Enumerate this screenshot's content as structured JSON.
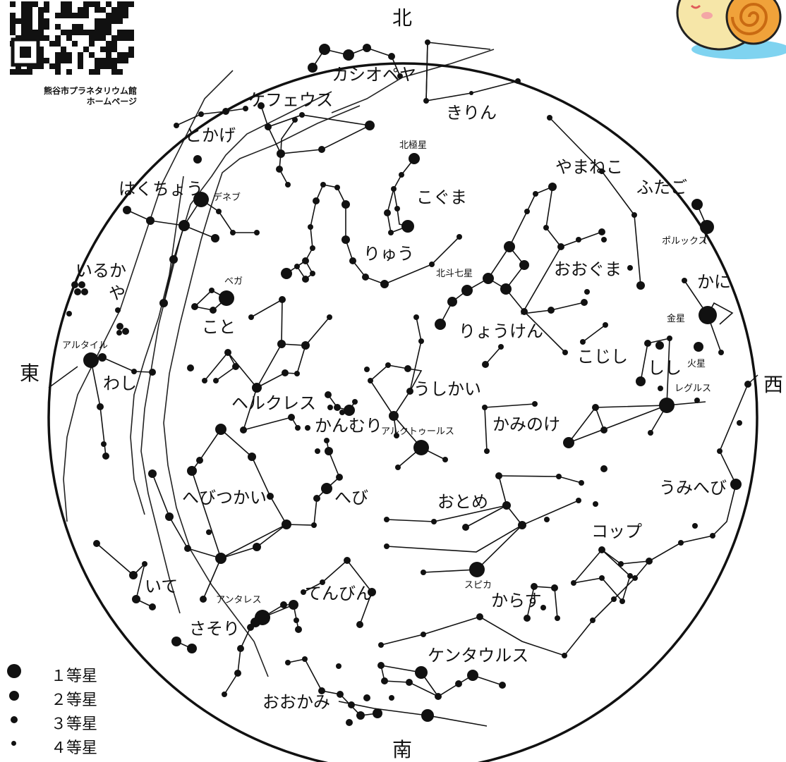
{
  "corner": {
    "qr_caption_line1": "熊谷市プラネタリウム館",
    "qr_caption_line2": "ホームページ",
    "mascot_icon": "snail-mascot-icon"
  },
  "directions": {
    "north": "北",
    "south": "南",
    "east": "東",
    "west": "西"
  },
  "constellations": {
    "cassiopeia": "カシオペヤ",
    "camelopardalis": "きりん",
    "cepheus": "ケフェウス",
    "lacerta": "とかげ",
    "ursa_minor": "こぐま",
    "lynx": "やまねこ",
    "gemini": "ふたご",
    "cygnus": "はくちょう",
    "draco": "りゅう",
    "ursa_major": "おおぐま",
    "cancer": "かに",
    "delphinus": "いるか",
    "sagitta": "や",
    "lyra": "こと",
    "canes_venatici": "りょうけん",
    "leo_minor": "こじし",
    "leo": "しし",
    "aquila": "わし",
    "hercules": "ヘルクレス",
    "bootes": "うしかい",
    "corona_borealis": "かんむり",
    "coma_berenices": "かみのけ",
    "hydra": "うみへび",
    "ophiuchus": "へびつかい",
    "serpens": "へび",
    "virgo": "おとめ",
    "crater": "コップ",
    "sagittarius": "いて",
    "libra": "てんびん",
    "corvus": "からす",
    "scorpius": "さそり",
    "centaurus": "ケンタウルス",
    "lupus": "おおかみ"
  },
  "stars": {
    "deneb": "デネブ",
    "polaris": "北極星",
    "pollux": "ポルックス",
    "vega": "ベガ",
    "big_dipper": "北斗七星",
    "venus": "金星",
    "altair": "アルタイル",
    "mars": "火星",
    "regulus": "レグルス",
    "arcturus": "アルクトゥールス",
    "antares": "アンタレス",
    "spica": "スピカ"
  },
  "legend": [
    {
      "label": "１等星",
      "magnitude": 1
    },
    {
      "label": "２等星",
      "magnitude": 2
    },
    {
      "label": "３等星",
      "magnitude": 3
    },
    {
      "label": "４等星",
      "magnitude": 4
    }
  ],
  "colors": {
    "ink": "#111111",
    "background": "#ffffff",
    "mascot_body": "#f6e6a8",
    "mascot_shell": "#f0a23a",
    "mascot_ground": "#7fd3f0"
  }
}
